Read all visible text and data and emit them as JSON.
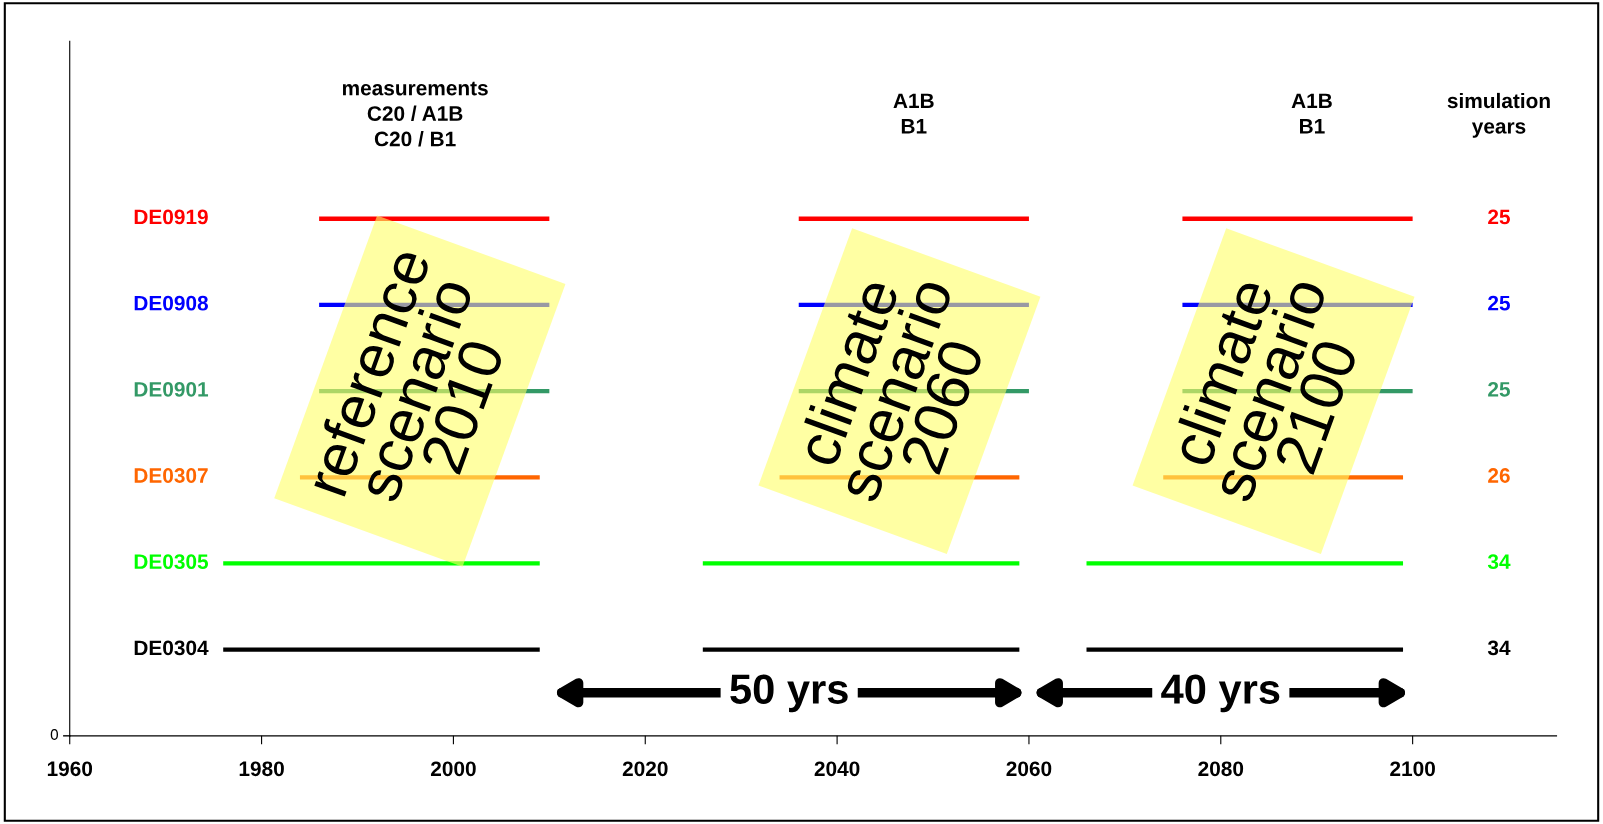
{
  "chart_data": {
    "type": "bar",
    "orientation": "horizontal",
    "categories": [
      "DE0919",
      "DE0908",
      "DE0901",
      "DE0307",
      "DE0305",
      "DE0304"
    ],
    "series": [
      {
        "base": [
          1986,
          1986,
          1986,
          1984,
          1976,
          1976
        ],
        "values": [
          24,
          24,
          24,
          25,
          33,
          33
        ],
        "colors": [
          "#ff0000",
          "#0000ff",
          "#339966",
          "#ff6600",
          "#00ff00",
          "#000000"
        ]
      },
      {
        "base": [
          2036,
          2036,
          2036,
          2034,
          2026,
          2026
        ],
        "values": [
          24,
          24,
          24,
          25,
          33,
          33
        ],
        "colors": [
          "#ff0000",
          "#0000ff",
          "#339966",
          "#ff6600",
          "#00ff00",
          "#000000"
        ]
      },
      {
        "base": [
          2076,
          2076,
          2076,
          2074,
          2066,
          2066
        ],
        "values": [
          24,
          24,
          24,
          25,
          33,
          33
        ],
        "colors": [
          "#ff0000",
          "#0000ff",
          "#339966",
          "#ff6600",
          "#00ff00",
          "#000000"
        ]
      }
    ],
    "xlim": [
      1960,
      2115
    ],
    "xticks": [
      1960,
      1980,
      2000,
      2020,
      2040,
      2060,
      2080,
      2100
    ],
    "annotations": [
      "measurements\nC20 / A1B\nC20 / B1",
      "A1B\nB1",
      "A1B\nB1",
      "simulation\nyears",
      "50 yrs",
      "40 yrs",
      "25",
      "25",
      "25",
      "26",
      "34",
      "34",
      {
        "text": "reference\nscenario\n2010",
        "x": 1996.5,
        "y": "DE0901"
      },
      {
        "text": "climate\nscenario\n2060",
        "x": 2046.5,
        "y": "DE0901"
      },
      {
        "text": "climate\nscenario\n2100",
        "x": 2085.5,
        "y": "DE0901"
      },
      "0"
    ],
    "grid": false,
    "legend": false
  }
}
